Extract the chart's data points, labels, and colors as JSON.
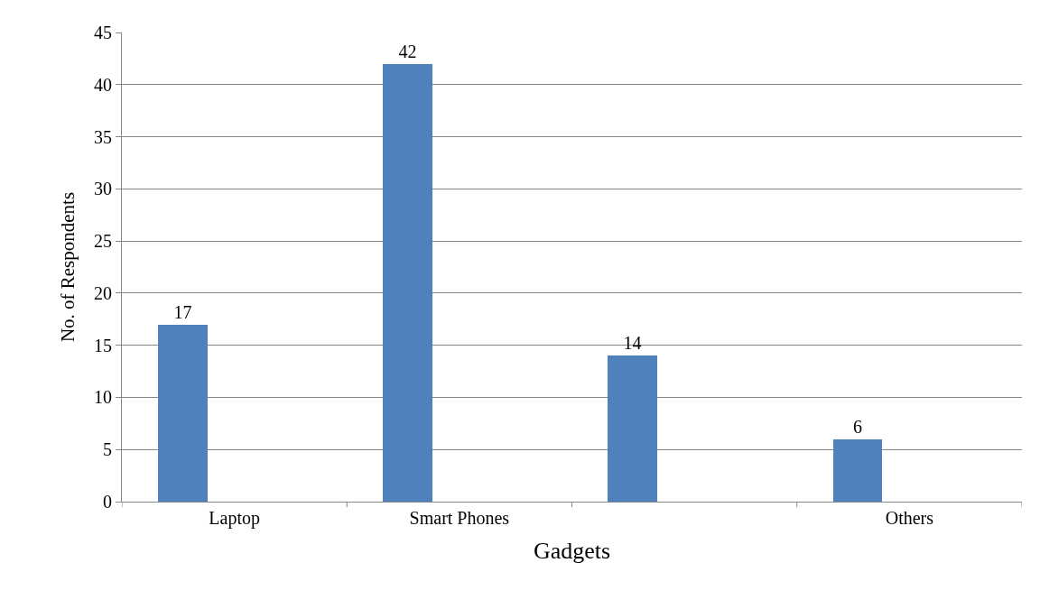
{
  "chart_data": {
    "type": "bar",
    "xlabel": "Gadgets",
    "ylabel": "No. of Respondents",
    "categories": [
      "Laptop",
      "Smart Phones",
      null,
      "Others"
    ],
    "values": [
      17,
      42,
      14,
      6
    ],
    "color": "#4f81bd",
    "ylim": [
      0,
      45
    ],
    "yticks": [
      0,
      5,
      10,
      15,
      20,
      25,
      30,
      35,
      40,
      45
    ],
    "grid": "y",
    "data_labels": true,
    "legend": false
  }
}
